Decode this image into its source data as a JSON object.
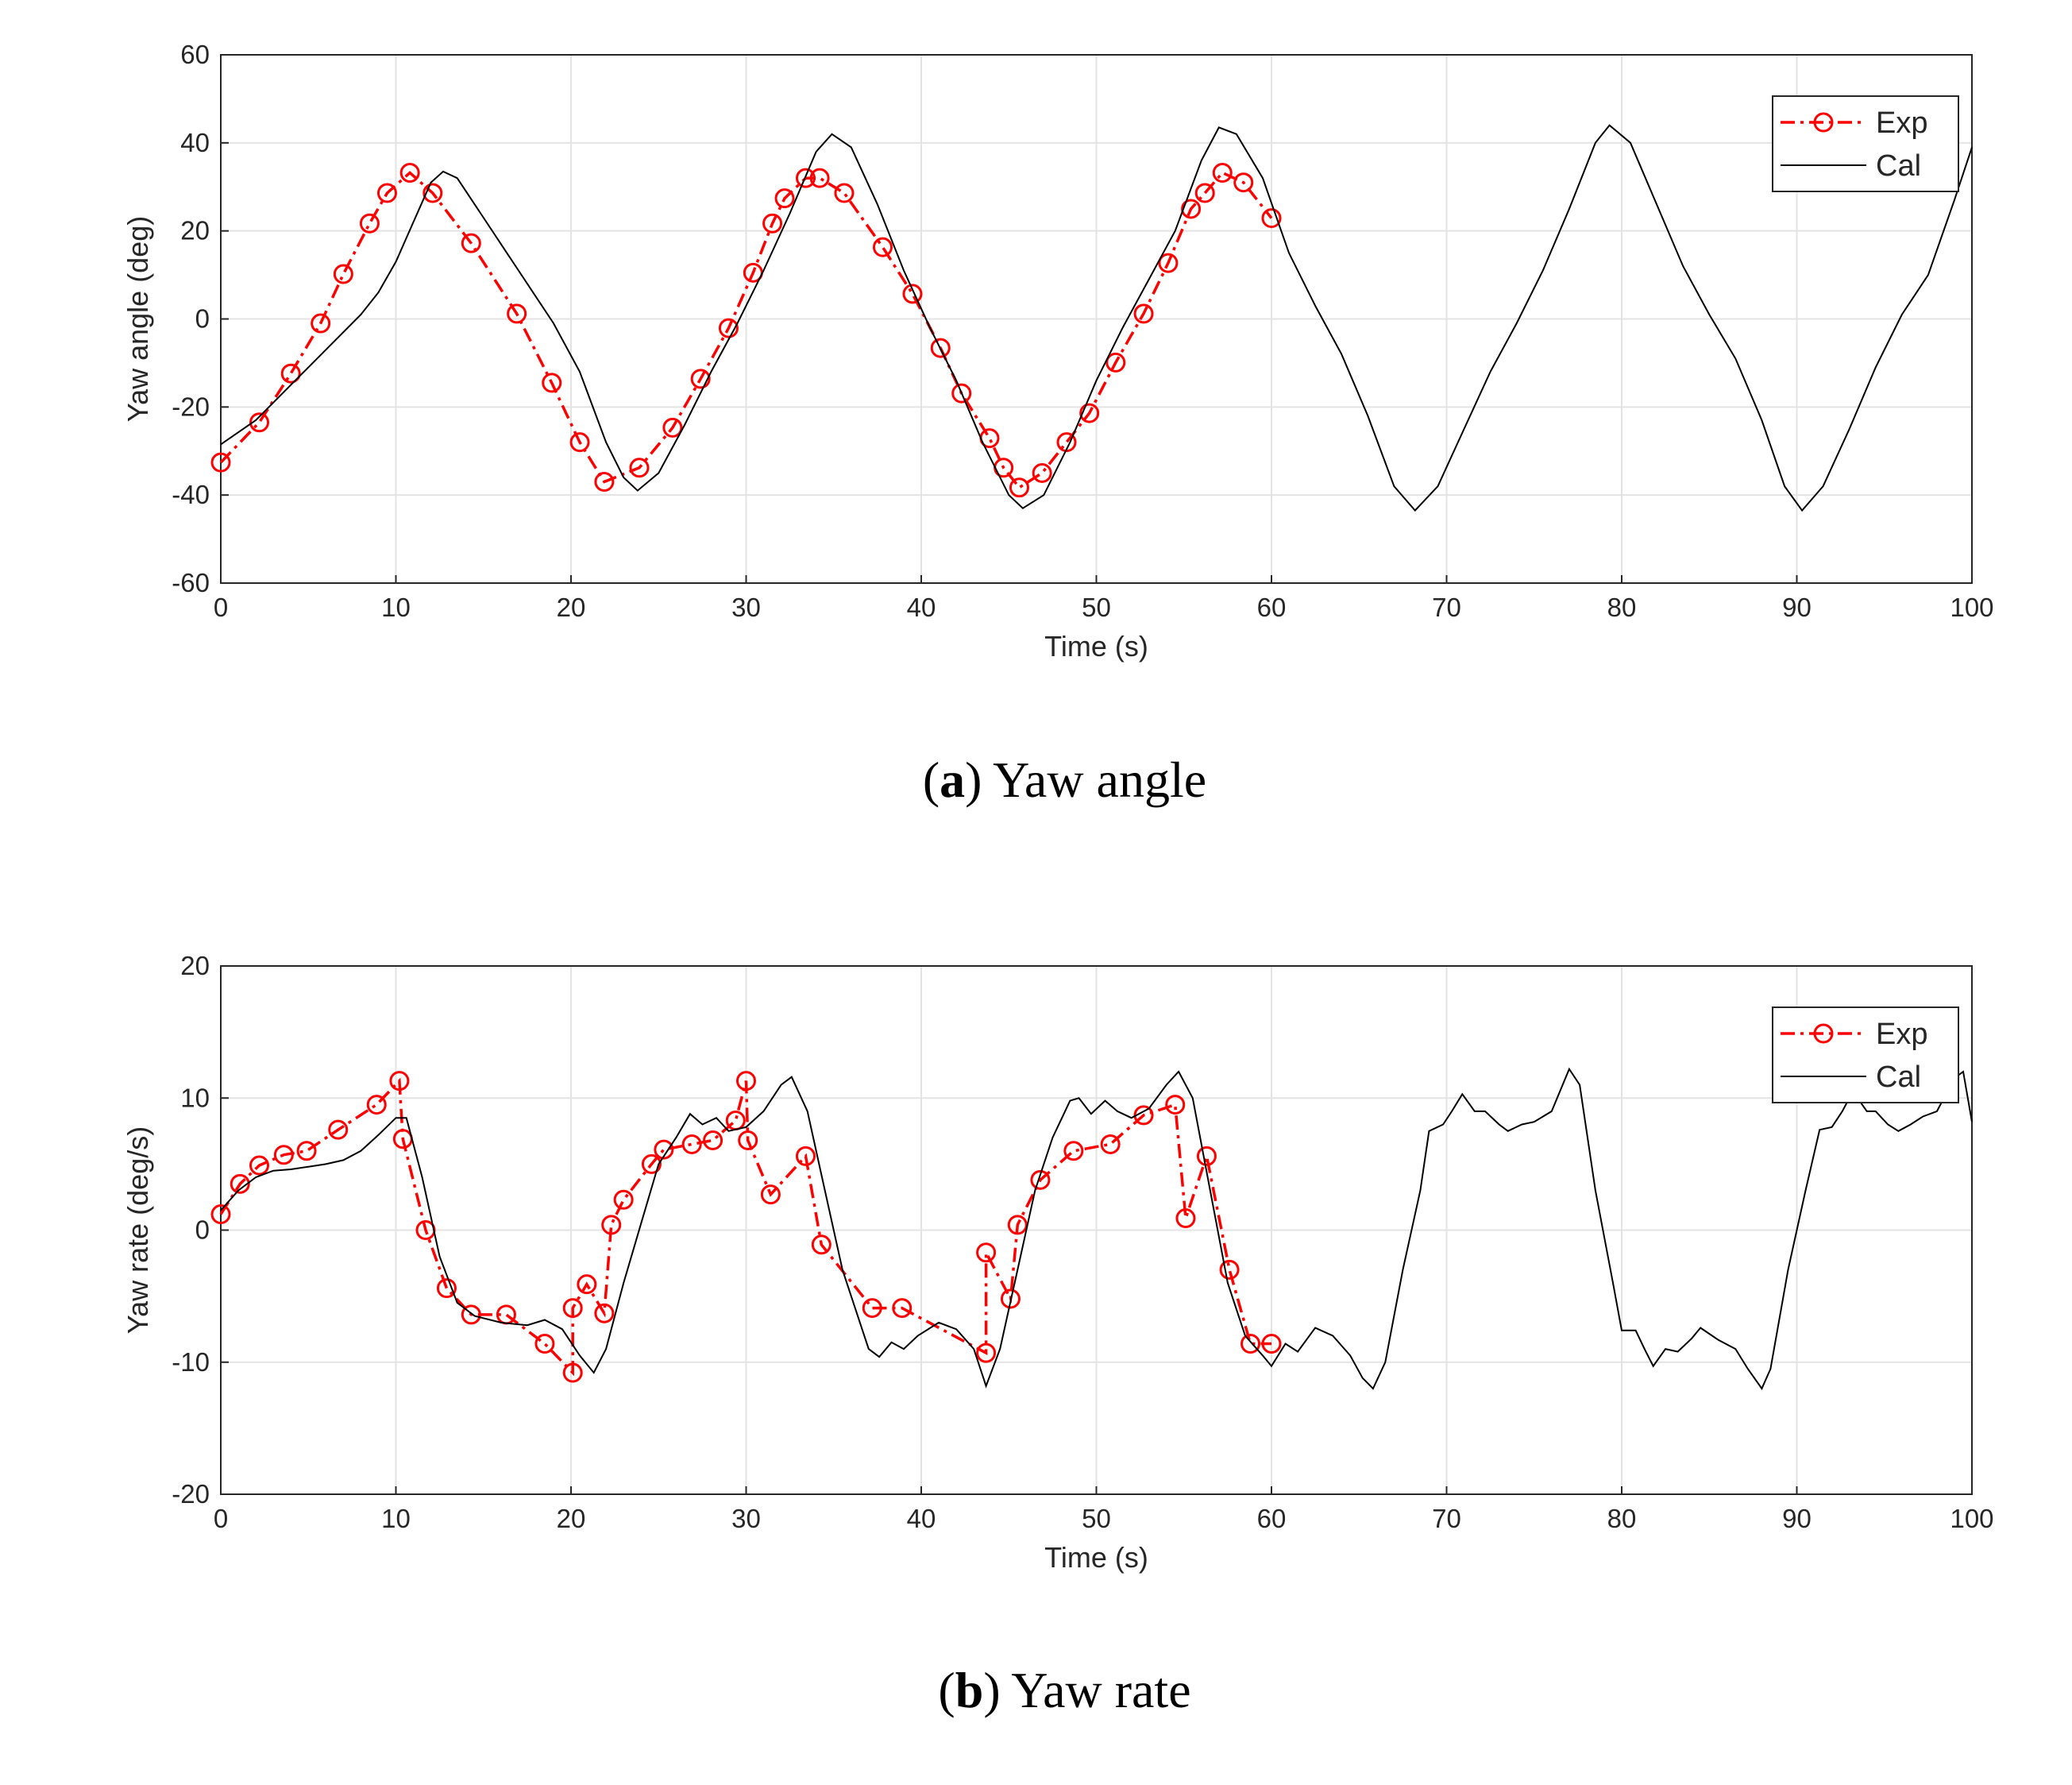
{
  "chart_data": [
    {
      "type": "line",
      "xlabel": "Time (s)",
      "ylabel": "Yaw angle (deg)",
      "caption_parts": [
        "(",
        "a",
        ") Yaw angle"
      ],
      "xlim": [
        0,
        100
      ],
      "xticks": [
        0,
        10,
        20,
        30,
        40,
        50,
        60,
        70,
        80,
        90,
        100
      ],
      "ylim": [
        -60,
        60
      ],
      "yticks": [
        -60,
        -40,
        -20,
        0,
        20,
        40,
        60
      ],
      "grid": true,
      "legend": "upper right",
      "series": [
        {
          "name": "Exp",
          "color": "#ff0000",
          "linestyle": "dashdot",
          "marker": "circle",
          "x": [
            0,
            2.2,
            4.0,
            5.7,
            7.0,
            8.5,
            9.5,
            10.8,
            12.1,
            14.3,
            16.9,
            18.9,
            20.5,
            21.9,
            23.9,
            25.8,
            27.4,
            29.0,
            30.4,
            31.5,
            32.2,
            33.4,
            34.2,
            35.6,
            37.8,
            39.5,
            41.1,
            42.3,
            43.9,
            44.7,
            45.6,
            46.9,
            48.3,
            49.6,
            51.1,
            52.7,
            54.1,
            55.4,
            56.2,
            57.2,
            58.4,
            60.0
          ],
          "values": [
            -32.6,
            -23.5,
            -12.4,
            -1,
            10.2,
            21.7,
            28.6,
            33.2,
            28.6,
            17.2,
            1.2,
            -14.5,
            -28,
            -37,
            -33.8,
            -24.7,
            -13.6,
            -2.1,
            10.5,
            21.7,
            27.4,
            32,
            32,
            28.6,
            16.3,
            5.7,
            -6.6,
            -16.9,
            -27.1,
            -33.8,
            -38.3,
            -35,
            -28,
            -21.4,
            -9.9,
            1.2,
            12.7,
            25,
            28.6,
            33.2,
            31,
            22.9
          ]
        },
        {
          "name": "Cal",
          "color": "#000000",
          "linestyle": "solid",
          "marker": "none",
          "x": [
            0,
            2,
            4,
            6,
            8,
            9,
            10,
            11,
            12,
            12.7,
            13.5,
            15,
            17,
            19,
            20.5,
            22,
            23,
            23.8,
            25,
            26.5,
            28,
            29.5,
            31,
            32.5,
            34,
            34.9,
            36,
            37.5,
            39,
            40.5,
            42,
            43.5,
            45,
            45.8,
            47,
            48.5,
            50,
            51.5,
            53,
            54.5,
            56,
            57,
            58,
            59.5,
            61,
            62.5,
            64,
            65.5,
            67,
            68.2,
            69.5,
            71,
            72.5,
            74,
            75.5,
            77,
            78.5,
            79.3,
            80.5,
            82,
            83.5,
            85,
            86.5,
            88,
            89.3,
            90.3,
            91.5,
            93,
            94.5,
            96,
            97.5,
            99,
            100
          ],
          "values": [
            -28.5,
            -23,
            -15,
            -7,
            1,
            6,
            13,
            22,
            31,
            33.5,
            32,
            23,
            11,
            -1,
            -12,
            -28,
            -36,
            -39,
            -35,
            -24,
            -12,
            -1,
            11,
            24,
            38,
            42,
            39,
            26,
            11,
            -2,
            -14,
            -28,
            -40,
            -43,
            -40,
            -28,
            -14,
            -2,
            9,
            20,
            36,
            43.5,
            42,
            32,
            15,
            3,
            -8,
            -22,
            -38,
            -43.5,
            -38,
            -25,
            -12,
            -1,
            11,
            25,
            40,
            44,
            40,
            26,
            12,
            1,
            -9,
            -23,
            -38,
            -43.5,
            -38,
            -25,
            -11,
            1,
            10,
            27,
            39
          ]
        }
      ]
    },
    {
      "type": "line",
      "xlabel": "Time (s)",
      "ylabel": "Yaw rate (deg/s)",
      "caption_parts": [
        "(",
        "b",
        ") Yaw rate"
      ],
      "xlim": [
        0,
        100
      ],
      "xticks": [
        0,
        10,
        20,
        30,
        40,
        50,
        60,
        70,
        80,
        90,
        100
      ],
      "ylim": [
        -20,
        20
      ],
      "yticks": [
        -20,
        -10,
        0,
        10,
        20
      ],
      "grid": true,
      "legend": "upper right",
      "series": [
        {
          "name": "Exp",
          "color": "#ff0000",
          "linestyle": "dashdot",
          "marker": "circle",
          "x": [
            0,
            1.1,
            2.2,
            3.6,
            4.9,
            6.7,
            8.9,
            10.2,
            10.4,
            11.7,
            12.9,
            14.3,
            16.3,
            18.5,
            20.1,
            20.1,
            20.9,
            21.9,
            22.3,
            23.0,
            24.6,
            25.3,
            26.9,
            28.1,
            29.4,
            30.0,
            30.1,
            31.4,
            33.4,
            34.3,
            37.2,
            38.9,
            43.7,
            43.7,
            45.1,
            45.5,
            46.8,
            48.7,
            50.8,
            52.7,
            54.5,
            55.1,
            56.3,
            57.6,
            58.8,
            60.0
          ],
          "values": [
            1.2,
            3.5,
            4.9,
            5.7,
            6,
            7.6,
            9.5,
            11.3,
            6.9,
            0,
            -4.4,
            -6.4,
            -6.4,
            -8.6,
            -10.8,
            -5.9,
            -4.1,
            -6.3,
            0.4,
            2.3,
            5,
            6.1,
            6.5,
            6.8,
            8.3,
            11.3,
            6.8,
            2.7,
            5.6,
            -1.1,
            -5.9,
            -5.9,
            -9.3,
            -1.7,
            -5.2,
            0.4,
            3.8,
            6,
            6.5,
            8.7,
            9.5,
            0.9,
            5.6,
            -3,
            -8.6,
            -8.6
          ]
        },
        {
          "name": "Cal",
          "color": "#000000",
          "linestyle": "solid",
          "marker": "none",
          "x": [
            0,
            1,
            2,
            3,
            4,
            5,
            6,
            7,
            8,
            9,
            10,
            10.6,
            11.5,
            12.5,
            13.5,
            14.5,
            16,
            17.5,
            18.5,
            19.5,
            20.5,
            21.3,
            22,
            23,
            24,
            25,
            26,
            26.8,
            27.5,
            28.3,
            29,
            30,
            31,
            32,
            32.6,
            33.5,
            34.5,
            35.5,
            36.5,
            37,
            37.6,
            38.3,
            39,
            39.8,
            41,
            42,
            43,
            43.7,
            44.5,
            45.5,
            46.5,
            47.5,
            48.5,
            49,
            49.7,
            50.5,
            51.2,
            52,
            53,
            54,
            54.7,
            55.5,
            56.5,
            57.5,
            58.5,
            59.5,
            60,
            60.8,
            61.5,
            62.5,
            63.5,
            64.5,
            65.2,
            65.8,
            66.5,
            67.5,
            68.5,
            69,
            69.8,
            70.3,
            70.9,
            71.6,
            72.2,
            73,
            73.5,
            74.3,
            75,
            76,
            77,
            77.6,
            78.5,
            79.5,
            80,
            80.8,
            81.3,
            81.8,
            82.5,
            83.2,
            84,
            84.5,
            85.5,
            86.5,
            87.2,
            88,
            88.5,
            89.5,
            90.5,
            91.3,
            92,
            92.6,
            93.2,
            94,
            94.5,
            95.2,
            95.8,
            96.5,
            97.2,
            98,
            99,
            99.5,
            100
          ],
          "values": [
            1.5,
            3,
            4,
            4.5,
            4.6,
            4.8,
            5,
            5.3,
            6,
            7.2,
            8.5,
            8.5,
            4,
            -2,
            -5.5,
            -6.5,
            -7,
            -7.2,
            -6.8,
            -7.5,
            -9.5,
            -10.8,
            -9,
            -4,
            0.5,
            5,
            7,
            8.8,
            8,
            8.5,
            7.5,
            7.8,
            9,
            11,
            11.6,
            9,
            3,
            -3,
            -7,
            -9,
            -9.6,
            -8.5,
            -9,
            -8,
            -7,
            -7.5,
            -9,
            -11.8,
            -9,
            -3,
            3,
            7,
            9.8,
            10,
            8.8,
            9.8,
            9,
            8.5,
            9.2,
            11,
            12,
            10,
            3,
            -4,
            -8,
            -9.5,
            -10.3,
            -8.6,
            -9.2,
            -7.4,
            -8,
            -9.5,
            -11.2,
            -12,
            -10,
            -3,
            3,
            7.5,
            8,
            9,
            10.3,
            9,
            9,
            8,
            7.5,
            8,
            8.2,
            9,
            12.2,
            11,
            3,
            -4,
            -7.6,
            -7.6,
            -9,
            -10.3,
            -9,
            -9.2,
            -8.2,
            -7.4,
            -8.3,
            -9,
            -10.5,
            -12,
            -10.5,
            -3,
            3,
            7.6,
            7.8,
            9,
            10.5,
            9,
            9,
            8,
            7.5,
            8,
            8.6,
            9,
            11.5,
            12,
            8.2
          ]
        }
      ]
    }
  ]
}
